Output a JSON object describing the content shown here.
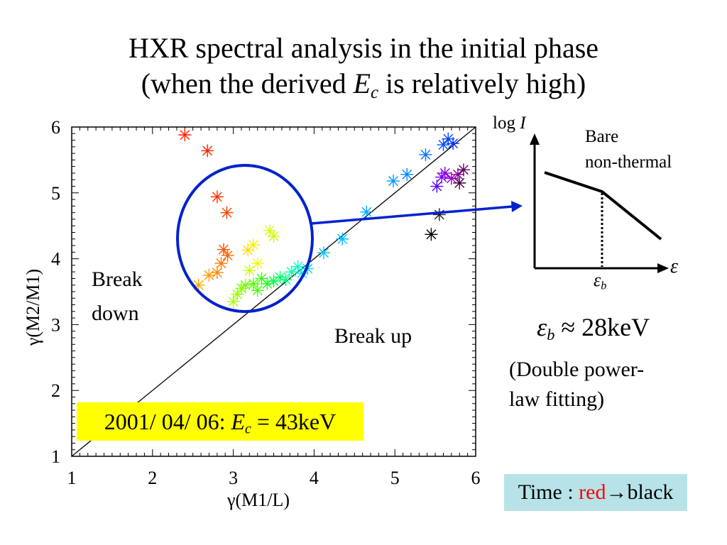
{
  "title": {
    "line1": "HXR spectral analysis in the initial phase",
    "line2_prefix": "(when the derived ",
    "line2_sym": "E",
    "line2_sub": "c",
    "line2_suffix": " is relatively high)"
  },
  "labels": {
    "break_down_1": "Break",
    "break_down_2": "down",
    "break_up": "Break up",
    "date_prefix": "2001/ 04/ 06: ",
    "date_sym": "E",
    "date_sub": "c",
    "date_suffix": " = 43keV",
    "time_prefix": "Time : ",
    "time_red": "red",
    "time_suffix": "→black",
    "eb_sym": "ε",
    "eb_sub": "b",
    "eb_value": " ≈ 28keV",
    "fit_note_1": "(Double power-",
    "fit_note_2": "law fitting)"
  },
  "inset": {
    "y_label_prefix": "log ",
    "y_label_sym": "I",
    "x_label": "ε",
    "break_sym": "ε",
    "break_sub": "b",
    "legend_1": "Bare",
    "legend_2": "non-thermal"
  },
  "colors": {
    "circle": "#0022cc",
    "arrow": "#0022cc",
    "date_box": "#ffff00",
    "time_box": "#b7e2e8"
  },
  "chart_data": {
    "type": "scatter",
    "title": "",
    "xlabel": "γ(M1/L)",
    "ylabel": "γ(M2/M1)",
    "xlim": [
      1,
      6
    ],
    "ylim": [
      1,
      6
    ],
    "xticks": [
      "1",
      "2",
      "3",
      "4",
      "5",
      "6"
    ],
    "yticks": [
      "1",
      "2",
      "3",
      "4",
      "5",
      "6"
    ],
    "reference_line": "y = x",
    "marker": "asterisk",
    "color_encodes": "time (red → black)",
    "points": [
      {
        "x": 2.4,
        "y": 5.88,
        "color": "#ff2200"
      },
      {
        "x": 2.68,
        "y": 5.64,
        "color": "#ff2200"
      },
      {
        "x": 2.8,
        "y": 4.94,
        "color": "#ff3300"
      },
      {
        "x": 2.92,
        "y": 4.7,
        "color": "#ff4400"
      },
      {
        "x": 2.88,
        "y": 4.14,
        "color": "#ff5500"
      },
      {
        "x": 2.93,
        "y": 4.05,
        "color": "#ff6600"
      },
      {
        "x": 2.85,
        "y": 3.93,
        "color": "#ff7700"
      },
      {
        "x": 2.8,
        "y": 3.79,
        "color": "#ff8800"
      },
      {
        "x": 2.7,
        "y": 3.75,
        "color": "#ff9900"
      },
      {
        "x": 2.57,
        "y": 3.6,
        "color": "#ffaa00"
      },
      {
        "x": 3.18,
        "y": 4.13,
        "color": "#ffdd00"
      },
      {
        "x": 3.25,
        "y": 4.21,
        "color": "#ffee00"
      },
      {
        "x": 3.3,
        "y": 3.93,
        "color": "#eeff00"
      },
      {
        "x": 3.45,
        "y": 4.43,
        "color": "#ddff00"
      },
      {
        "x": 3.5,
        "y": 4.34,
        "color": "#ccff00"
      },
      {
        "x": 3.2,
        "y": 3.82,
        "color": "#ccff00"
      },
      {
        "x": 3.0,
        "y": 3.35,
        "color": "#aaff00"
      },
      {
        "x": 3.05,
        "y": 3.46,
        "color": "#99ff00"
      },
      {
        "x": 3.1,
        "y": 3.55,
        "color": "#88ff00"
      },
      {
        "x": 3.15,
        "y": 3.6,
        "color": "#77ff00"
      },
      {
        "x": 3.25,
        "y": 3.62,
        "color": "#55ff00"
      },
      {
        "x": 3.3,
        "y": 3.52,
        "color": "#44ff00"
      },
      {
        "x": 3.35,
        "y": 3.7,
        "color": "#33ff00"
      },
      {
        "x": 3.42,
        "y": 3.62,
        "color": "#22ff22"
      },
      {
        "x": 3.5,
        "y": 3.66,
        "color": "#00ff44"
      },
      {
        "x": 3.58,
        "y": 3.72,
        "color": "#00ff66"
      },
      {
        "x": 3.65,
        "y": 3.68,
        "color": "#00ff88"
      },
      {
        "x": 3.72,
        "y": 3.8,
        "color": "#00ffaa"
      },
      {
        "x": 3.8,
        "y": 3.88,
        "color": "#00ffcc"
      },
      {
        "x": 3.85,
        "y": 3.78,
        "color": "#00eedd"
      },
      {
        "x": 3.92,
        "y": 3.85,
        "color": "#00ddee"
      },
      {
        "x": 4.12,
        "y": 4.09,
        "color": "#00ccff"
      },
      {
        "x": 4.35,
        "y": 4.3,
        "color": "#00bbff"
      },
      {
        "x": 4.65,
        "y": 4.71,
        "color": "#00aaff"
      },
      {
        "x": 4.98,
        "y": 5.18,
        "color": "#0099ff"
      },
      {
        "x": 5.15,
        "y": 5.28,
        "color": "#0088ff"
      },
      {
        "x": 5.38,
        "y": 5.58,
        "color": "#0077ff"
      },
      {
        "x": 5.6,
        "y": 5.73,
        "color": "#0055ff"
      },
      {
        "x": 5.66,
        "y": 5.82,
        "color": "#0044ff"
      },
      {
        "x": 5.72,
        "y": 5.75,
        "color": "#0033ff"
      },
      {
        "x": 5.52,
        "y": 5.1,
        "color": "#5500ff"
      },
      {
        "x": 5.58,
        "y": 5.24,
        "color": "#7700ee"
      },
      {
        "x": 5.62,
        "y": 5.3,
        "color": "#8800dd"
      },
      {
        "x": 5.7,
        "y": 5.22,
        "color": "#9900cc"
      },
      {
        "x": 5.78,
        "y": 5.28,
        "color": "#880099"
      },
      {
        "x": 5.85,
        "y": 5.35,
        "color": "#660066"
      },
      {
        "x": 5.8,
        "y": 5.15,
        "color": "#440044"
      },
      {
        "x": 5.55,
        "y": 4.67,
        "color": "#222222"
      },
      {
        "x": 5.45,
        "y": 4.37,
        "color": "#000000"
      }
    ]
  }
}
